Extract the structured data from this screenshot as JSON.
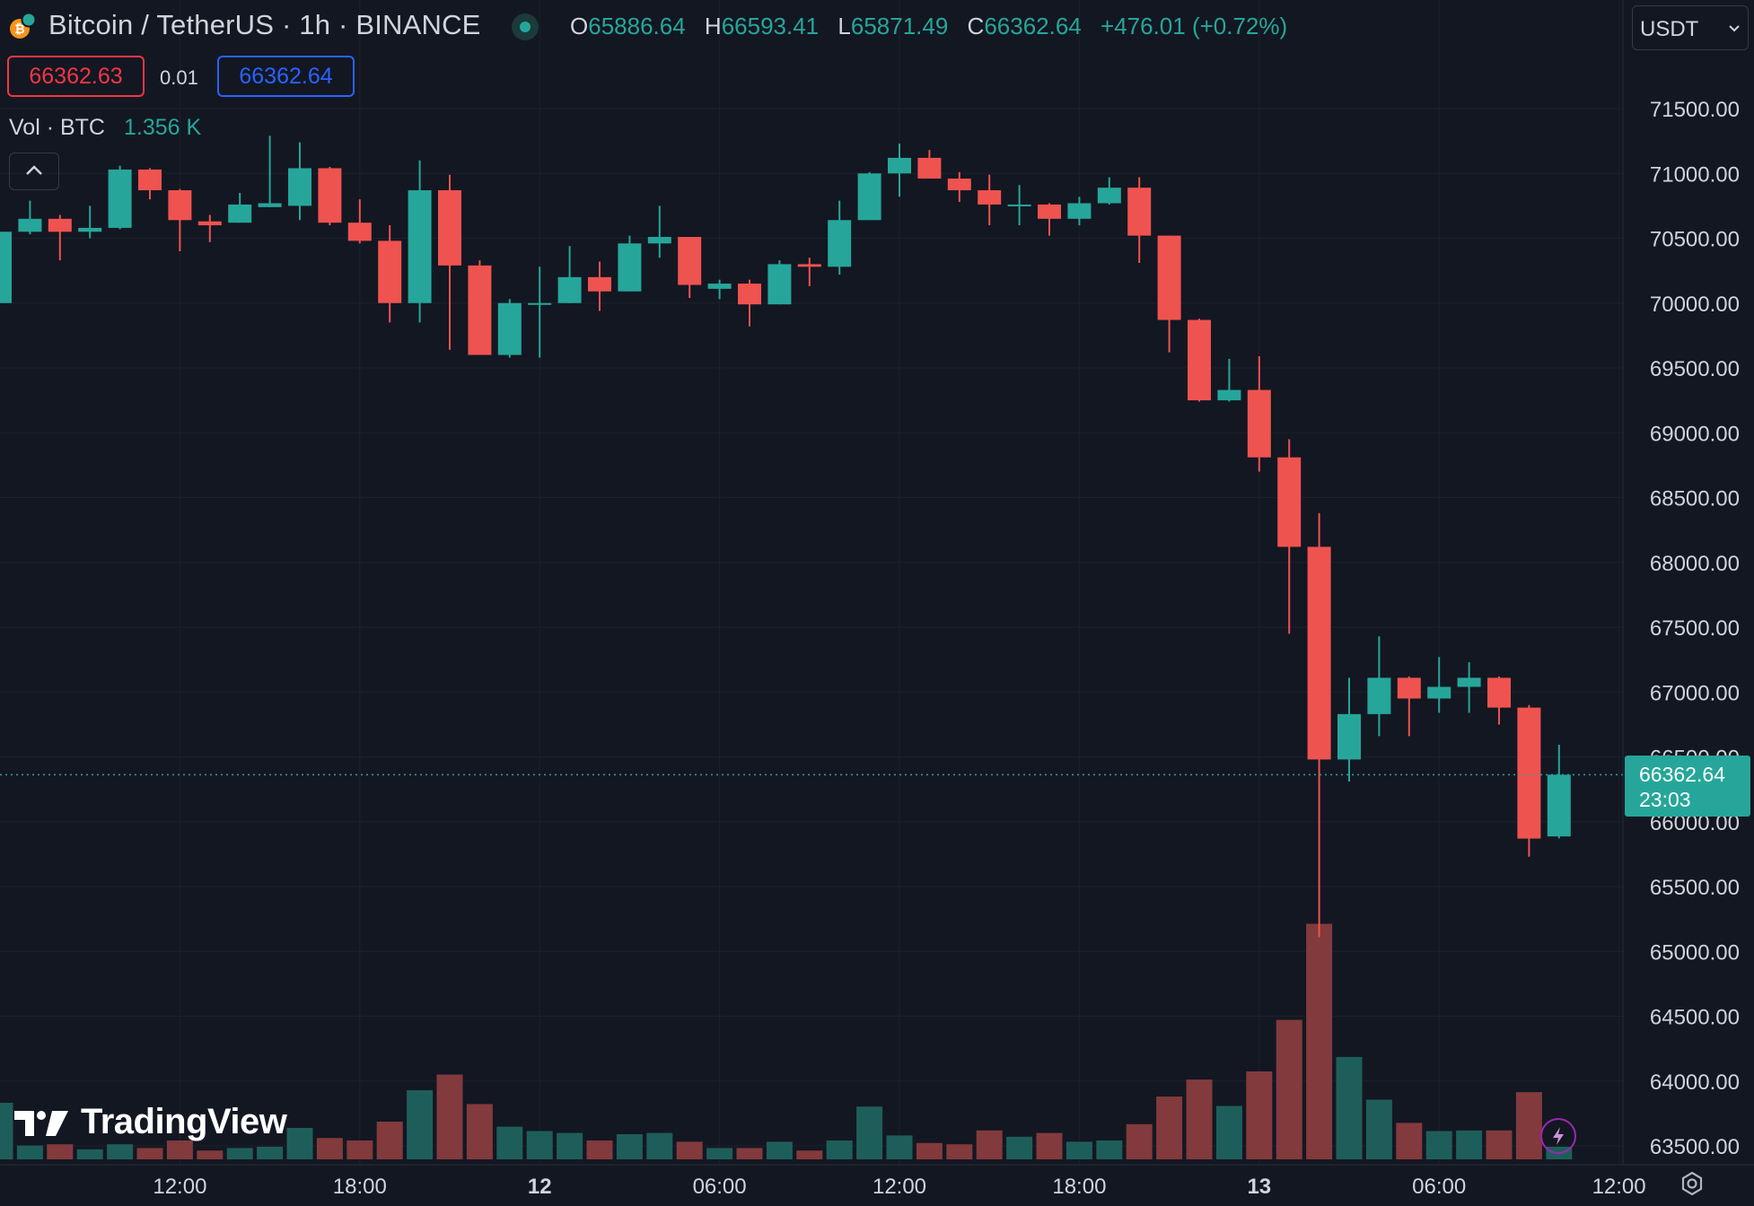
{
  "header": {
    "symbol_title": "Bitcoin / TetherUS · 1h · BINANCE",
    "ohlc": [
      {
        "key": "O",
        "value": "65886.64"
      },
      {
        "key": "H",
        "value": "66593.41"
      },
      {
        "key": "L",
        "value": "65871.49"
      },
      {
        "key": "C",
        "value": "66362.64"
      }
    ],
    "change": "+476.01 (+0.72%)",
    "sell_price": "66362.63",
    "spread": "0.01",
    "buy_price": "66362.64",
    "currency": "USDT"
  },
  "volume_indicator": {
    "label": "Vol · BTC",
    "value": "1.356 K"
  },
  "last_price": {
    "price": "66362.64",
    "countdown": "23:03"
  },
  "watermark": {
    "text": "TradingView"
  },
  "colors": {
    "up": "#26a69a",
    "down": "#ef5350",
    "vol_up": "#1e5e5a",
    "vol_down": "#823a3d",
    "background": "#131722",
    "axis_text": "#d1d4dc"
  },
  "icons": [
    "bitcoin-coin-icon",
    "chevron-up-icon",
    "chevron-down-icon",
    "lightning-icon",
    "settings-gear-icon",
    "tradingview-logo-icon"
  ],
  "chart_data": {
    "type": "candlestick",
    "interval": "1h",
    "y_range": [
      63400,
      71900
    ],
    "y_ticks": [
      63500,
      64000,
      64500,
      65000,
      65500,
      66000,
      66500,
      67000,
      67500,
      68000,
      68500,
      69000,
      69500,
      70000,
      70500,
      71000,
      71500
    ],
    "x_tick_labels": [
      {
        "index": 6,
        "label": "12:00",
        "bold": false
      },
      {
        "index": 12,
        "label": "18:00",
        "bold": false
      },
      {
        "index": 18,
        "label": "12",
        "bold": true
      },
      {
        "index": 24,
        "label": "06:00",
        "bold": false
      },
      {
        "index": 30,
        "label": "12:00",
        "bold": false
      },
      {
        "index": 36,
        "label": "18:00",
        "bold": false
      },
      {
        "index": 42,
        "label": "13",
        "bold": true
      },
      {
        "index": 48,
        "label": "06:00",
        "bold": false
      },
      {
        "index": 54,
        "label": "12:00",
        "bold": false
      }
    ],
    "candles": [
      {
        "o": 70000,
        "h": 70550,
        "l": 70000,
        "c": 70550,
        "v": 90
      },
      {
        "o": 70550,
        "h": 70790,
        "l": 70530,
        "c": 70650,
        "v": 22
      },
      {
        "o": 70650,
        "h": 70680,
        "l": 70330,
        "c": 70550,
        "v": 24
      },
      {
        "o": 70550,
        "h": 70750,
        "l": 70500,
        "c": 70580,
        "v": 16
      },
      {
        "o": 70580,
        "h": 71060,
        "l": 70570,
        "c": 71030,
        "v": 24
      },
      {
        "o": 71030,
        "h": 71040,
        "l": 70800,
        "c": 70870,
        "v": 18
      },
      {
        "o": 70870,
        "h": 70880,
        "l": 70400,
        "c": 70640,
        "v": 30
      },
      {
        "o": 70630,
        "h": 70680,
        "l": 70470,
        "c": 70600,
        "v": 14
      },
      {
        "o": 70620,
        "h": 70850,
        "l": 70620,
        "c": 70760,
        "v": 18
      },
      {
        "o": 70740,
        "h": 71290,
        "l": 70740,
        "c": 70770,
        "v": 20
      },
      {
        "o": 70750,
        "h": 71240,
        "l": 70640,
        "c": 71040,
        "v": 50
      },
      {
        "o": 71040,
        "h": 71050,
        "l": 70600,
        "c": 70620,
        "v": 34
      },
      {
        "o": 70620,
        "h": 70800,
        "l": 70460,
        "c": 70480,
        "v": 30
      },
      {
        "o": 70480,
        "h": 70600,
        "l": 69850,
        "c": 70000,
        "v": 60
      },
      {
        "o": 70000,
        "h": 71100,
        "l": 69850,
        "c": 70870,
        "v": 110
      },
      {
        "o": 70870,
        "h": 70990,
        "l": 69640,
        "c": 70290,
        "v": 135
      },
      {
        "o": 70290,
        "h": 70330,
        "l": 69600,
        "c": 69600,
        "v": 88
      },
      {
        "o": 69600,
        "h": 70030,
        "l": 69580,
        "c": 70000,
        "v": 52
      },
      {
        "o": 70000,
        "h": 70280,
        "l": 69580,
        "c": 70000,
        "v": 45
      },
      {
        "o": 70000,
        "h": 70440,
        "l": 70000,
        "c": 70200,
        "v": 42
      },
      {
        "o": 70200,
        "h": 70320,
        "l": 69940,
        "c": 70090,
        "v": 30
      },
      {
        "o": 70090,
        "h": 70520,
        "l": 70090,
        "c": 70460,
        "v": 40
      },
      {
        "o": 70460,
        "h": 70750,
        "l": 70350,
        "c": 70510,
        "v": 42
      },
      {
        "o": 70510,
        "h": 70510,
        "l": 70040,
        "c": 70140,
        "v": 28
      },
      {
        "o": 70110,
        "h": 70180,
        "l": 70030,
        "c": 70150,
        "v": 18
      },
      {
        "o": 70150,
        "h": 70180,
        "l": 69820,
        "c": 69990,
        "v": 18
      },
      {
        "o": 69990,
        "h": 70330,
        "l": 69990,
        "c": 70300,
        "v": 28
      },
      {
        "o": 70300,
        "h": 70350,
        "l": 70130,
        "c": 70280,
        "v": 14
      },
      {
        "o": 70280,
        "h": 70790,
        "l": 70220,
        "c": 70640,
        "v": 30
      },
      {
        "o": 70640,
        "h": 71010,
        "l": 70640,
        "c": 71000,
        "v": 84
      },
      {
        "o": 71000,
        "h": 71230,
        "l": 70820,
        "c": 71120,
        "v": 38
      },
      {
        "o": 71120,
        "h": 71180,
        "l": 70960,
        "c": 70960,
        "v": 26
      },
      {
        "o": 70960,
        "h": 71010,
        "l": 70780,
        "c": 70870,
        "v": 24
      },
      {
        "o": 70870,
        "h": 70990,
        "l": 70600,
        "c": 70760,
        "v": 46
      },
      {
        "o": 70760,
        "h": 70910,
        "l": 70600,
        "c": 70760,
        "v": 36
      },
      {
        "o": 70760,
        "h": 70770,
        "l": 70520,
        "c": 70650,
        "v": 42
      },
      {
        "o": 70650,
        "h": 70820,
        "l": 70600,
        "c": 70770,
        "v": 28
      },
      {
        "o": 70770,
        "h": 70970,
        "l": 70760,
        "c": 70890,
        "v": 30
      },
      {
        "o": 70890,
        "h": 70970,
        "l": 70310,
        "c": 70520,
        "v": 56
      },
      {
        "o": 70520,
        "h": 70520,
        "l": 69620,
        "c": 69870,
        "v": 100
      },
      {
        "o": 69870,
        "h": 69880,
        "l": 69240,
        "c": 69250,
        "v": 127
      },
      {
        "o": 69250,
        "h": 69570,
        "l": 69240,
        "c": 69330,
        "v": 85
      },
      {
        "o": 69330,
        "h": 69590,
        "l": 68700,
        "c": 68810,
        "v": 140
      },
      {
        "o": 68810,
        "h": 68950,
        "l": 67450,
        "c": 68120,
        "v": 222
      },
      {
        "o": 68120,
        "h": 68380,
        "l": 65110,
        "c": 66480,
        "v": 375
      },
      {
        "o": 66480,
        "h": 67110,
        "l": 66310,
        "c": 66830,
        "v": 163
      },
      {
        "o": 66830,
        "h": 67430,
        "l": 66660,
        "c": 67110,
        "v": 95
      },
      {
        "o": 67110,
        "h": 67120,
        "l": 66660,
        "c": 66950,
        "v": 58
      },
      {
        "o": 66950,
        "h": 67270,
        "l": 66840,
        "c": 67040,
        "v": 45
      },
      {
        "o": 67040,
        "h": 67230,
        "l": 66840,
        "c": 67110,
        "v": 46
      },
      {
        "o": 67110,
        "h": 67120,
        "l": 66750,
        "c": 66880,
        "v": 46
      },
      {
        "o": 66880,
        "h": 66900,
        "l": 65730,
        "c": 65870,
        "v": 107
      },
      {
        "o": 65886.64,
        "h": 66593.41,
        "l": 65871.49,
        "c": 66362.64,
        "v": 20
      }
    ]
  }
}
